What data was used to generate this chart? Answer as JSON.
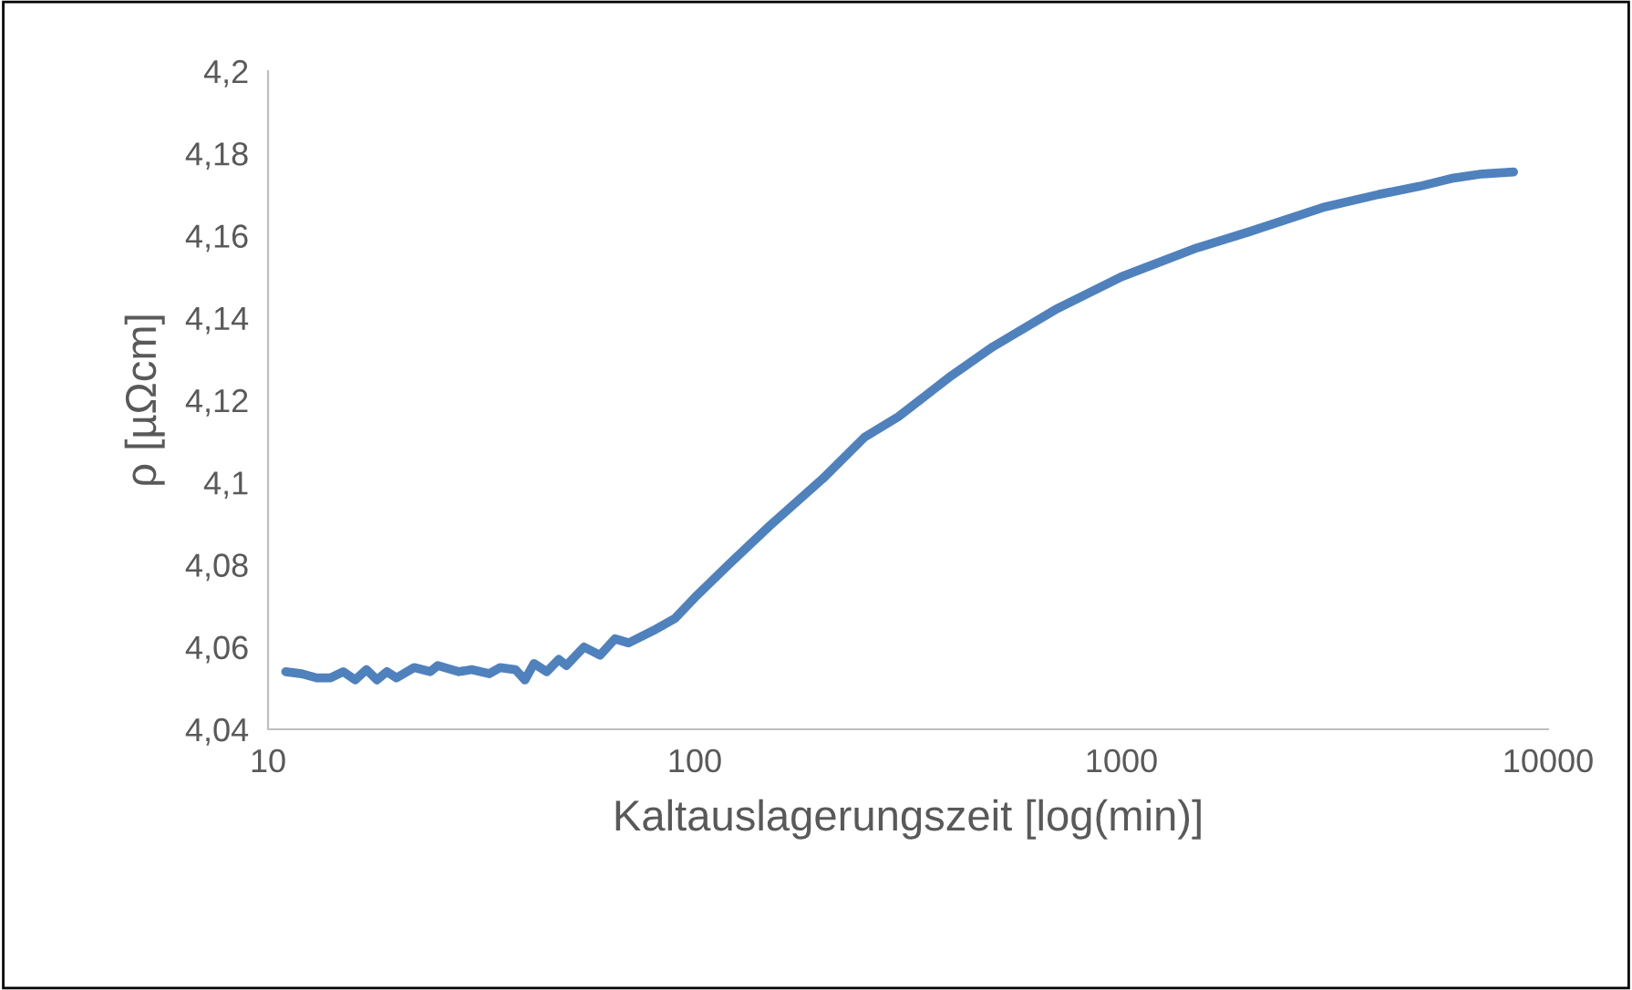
{
  "chart_data": {
    "type": "line",
    "xlabel": "Kaltauslagerungszeit [log(min)]",
    "ylabel": "ρ [µΩcm]",
    "log": "x",
    "xlim": [
      10,
      10000
    ],
    "xticks": [
      10,
      100,
      1000,
      10000
    ],
    "ylim": [
      4.04,
      4.2
    ],
    "yticks": [
      {
        "value": 4.04,
        "label": "4,04"
      },
      {
        "value": 4.06,
        "label": "4,06"
      },
      {
        "value": 4.08,
        "label": "4,08"
      },
      {
        "value": 4.1,
        "label": "4,1"
      },
      {
        "value": 4.12,
        "label": "4,12"
      },
      {
        "value": 4.14,
        "label": "4,14"
      },
      {
        "value": 4.16,
        "label": "4,16"
      },
      {
        "value": 4.18,
        "label": "4,18"
      },
      {
        "value": 4.2,
        "label": "4,2"
      }
    ],
    "grid": false,
    "legend": false,
    "marker": "none",
    "line_style": "solid",
    "series": [
      {
        "color": "#4f81bd",
        "x": [
          11,
          12,
          13,
          14,
          15,
          16,
          17,
          18,
          19,
          20,
          22,
          24,
          25,
          28,
          30,
          33,
          35,
          38,
          40,
          42,
          45,
          48,
          50,
          55,
          60,
          65,
          70,
          80,
          90,
          100,
          120,
          150,
          200,
          250,
          300,
          400,
          500,
          700,
          1000,
          1500,
          2000,
          3000,
          4000,
          5000,
          6000,
          7000,
          8300
        ],
        "values": [
          4.054,
          4.0535,
          4.0525,
          4.0525,
          4.054,
          4.052,
          4.0545,
          4.052,
          4.054,
          4.0525,
          4.055,
          4.054,
          4.0555,
          4.054,
          4.0545,
          4.0535,
          4.055,
          4.0545,
          4.052,
          4.056,
          4.054,
          4.057,
          4.0555,
          4.06,
          4.058,
          4.062,
          4.061,
          4.064,
          4.067,
          4.072,
          4.08,
          4.0895,
          4.101,
          4.111,
          4.116,
          4.126,
          4.133,
          4.142,
          4.15,
          4.157,
          4.161,
          4.167,
          4.17,
          4.172,
          4.174,
          4.175,
          4.1755
        ]
      }
    ]
  }
}
